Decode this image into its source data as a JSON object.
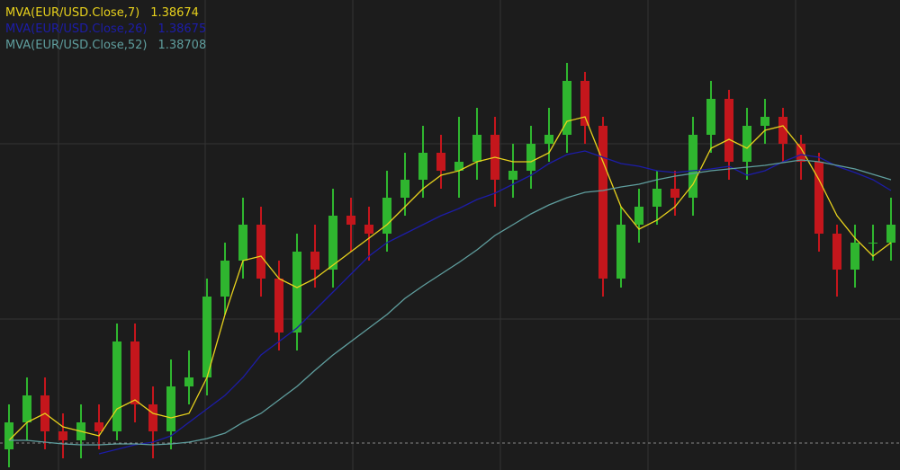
{
  "chart_data": {
    "type": "candlestick",
    "up_color": "#2fb52f",
    "down_color": "#c4161c",
    "ylim": [
      1.37954,
      1.39
    ],
    "open": [
      1.38,
      1.3806,
      1.3812,
      1.3804,
      1.3802,
      1.3806,
      1.3804,
      1.3824,
      1.381,
      1.3804,
      1.3814,
      1.3816,
      1.3834,
      1.3842,
      1.385,
      1.3838,
      1.3826,
      1.3844,
      1.384,
      1.3852,
      1.385,
      1.3848,
      1.3856,
      1.386,
      1.3866,
      1.3862,
      1.3864,
      1.387,
      1.386,
      1.3862,
      1.3868,
      1.387,
      1.3882,
      1.3872,
      1.3838,
      1.385,
      1.3854,
      1.3858,
      1.3856,
      1.387,
      1.3878,
      1.3864,
      1.3872,
      1.3874,
      1.3868,
      1.3864,
      1.3848,
      1.384,
      1.3846,
      1.3846
    ],
    "high": [
      1.381,
      1.3816,
      1.3816,
      1.3808,
      1.381,
      1.381,
      1.3828,
      1.3828,
      1.3814,
      1.382,
      1.3822,
      1.3838,
      1.3846,
      1.3856,
      1.3854,
      1.3842,
      1.3848,
      1.385,
      1.3858,
      1.3856,
      1.3854,
      1.3862,
      1.3866,
      1.3872,
      1.387,
      1.3874,
      1.3876,
      1.3874,
      1.3868,
      1.3872,
      1.3876,
      1.3886,
      1.3884,
      1.3874,
      1.3854,
      1.3858,
      1.3862,
      1.3862,
      1.3874,
      1.3882,
      1.388,
      1.3876,
      1.3878,
      1.3876,
      1.387,
      1.3866,
      1.385,
      1.385,
      1.385,
      1.3856
    ],
    "low": [
      1.3796,
      1.3802,
      1.38,
      1.3798,
      1.3798,
      1.38,
      1.3802,
      1.3806,
      1.3798,
      1.38,
      1.381,
      1.3812,
      1.383,
      1.3838,
      1.3834,
      1.3822,
      1.3822,
      1.3836,
      1.3836,
      1.3844,
      1.3842,
      1.3844,
      1.3852,
      1.3856,
      1.3858,
      1.3856,
      1.386,
      1.3854,
      1.3856,
      1.3858,
      1.3864,
      1.3866,
      1.3868,
      1.3834,
      1.3836,
      1.3846,
      1.385,
      1.3852,
      1.3852,
      1.3866,
      1.386,
      1.386,
      1.3868,
      1.3864,
      1.386,
      1.3844,
      1.3834,
      1.3836,
      1.3842,
      1.3842
    ],
    "close": [
      1.3806,
      1.3812,
      1.3804,
      1.3802,
      1.3806,
      1.3804,
      1.3824,
      1.381,
      1.3804,
      1.3814,
      1.3816,
      1.3834,
      1.3842,
      1.385,
      1.3838,
      1.3826,
      1.3844,
      1.384,
      1.3852,
      1.385,
      1.3848,
      1.3856,
      1.386,
      1.3866,
      1.3862,
      1.3864,
      1.387,
      1.386,
      1.3862,
      1.3868,
      1.387,
      1.3882,
      1.3872,
      1.3838,
      1.385,
      1.3854,
      1.3858,
      1.3856,
      1.387,
      1.3878,
      1.3864,
      1.3872,
      1.3874,
      1.3868,
      1.3864,
      1.3848,
      1.384,
      1.3846,
      1.3846,
      1.385
    ],
    "series": [
      {
        "name": "MVA(EUR/USD.Close,7)",
        "color": "#e8d21c",
        "legend_value": 1.38674,
        "values": [
          1.3802,
          1.3806,
          1.3808,
          1.3805,
          1.3804,
          1.3803,
          1.3809,
          1.3811,
          1.3808,
          1.3807,
          1.3808,
          1.3816,
          1.383,
          1.3842,
          1.3843,
          1.3838,
          1.3836,
          1.3838,
          1.3841,
          1.3844,
          1.3847,
          1.385,
          1.3854,
          1.3858,
          1.3861,
          1.3862,
          1.3864,
          1.3865,
          1.3864,
          1.3864,
          1.3866,
          1.3873,
          1.3874,
          1.3864,
          1.3854,
          1.3849,
          1.3851,
          1.3854,
          1.3859,
          1.3867,
          1.3869,
          1.3867,
          1.3871,
          1.3872,
          1.3867,
          1.386,
          1.3852,
          1.3847,
          1.3843,
          1.3846
        ]
      },
      {
        "name": "MVA(EUR/USD.Close,26)",
        "color": "#1c1ca8",
        "legend_value": 1.38675,
        "values": [
          null,
          null,
          null,
          null,
          null,
          1.3799,
          1.38,
          1.3801,
          1.38016,
          1.3803,
          1.3806,
          1.3809,
          1.3812,
          1.3816,
          1.3821,
          1.3824,
          1.3827,
          1.3831,
          1.3835,
          1.3839,
          1.3843,
          1.3846,
          1.3848,
          1.385,
          1.3852,
          1.38536,
          1.38556,
          1.3857,
          1.3859,
          1.3861,
          1.38636,
          1.38656,
          1.38664,
          1.3865,
          1.38636,
          1.3863,
          1.3862,
          1.38616,
          1.3862,
          1.38624,
          1.3863,
          1.3861,
          1.3862,
          1.3864,
          1.38656,
          1.3865,
          1.3863,
          1.38616,
          1.386,
          1.38576
        ]
      },
      {
        "name": "MVA(EUR/USD.Close,52)",
        "color": "#5f9e9e",
        "legend_value": 1.38708,
        "values": [
          1.3802,
          1.3802,
          1.38016,
          1.38012,
          1.3801,
          1.3801,
          1.38012,
          1.38012,
          1.3801,
          1.38012,
          1.38016,
          1.38024,
          1.38036,
          1.3806,
          1.3808,
          1.3811,
          1.3814,
          1.38176,
          1.3821,
          1.3824,
          1.3827,
          1.383,
          1.38336,
          1.38364,
          1.3839,
          1.38416,
          1.38444,
          1.38476,
          1.385,
          1.38524,
          1.38544,
          1.3856,
          1.38572,
          1.38576,
          1.38584,
          1.3859,
          1.386,
          1.38608,
          1.38614,
          1.3862,
          1.38624,
          1.38628,
          1.38632,
          1.38638,
          1.38644,
          1.3864,
          1.38632,
          1.38624,
          1.38612,
          1.386
        ]
      }
    ]
  }
}
